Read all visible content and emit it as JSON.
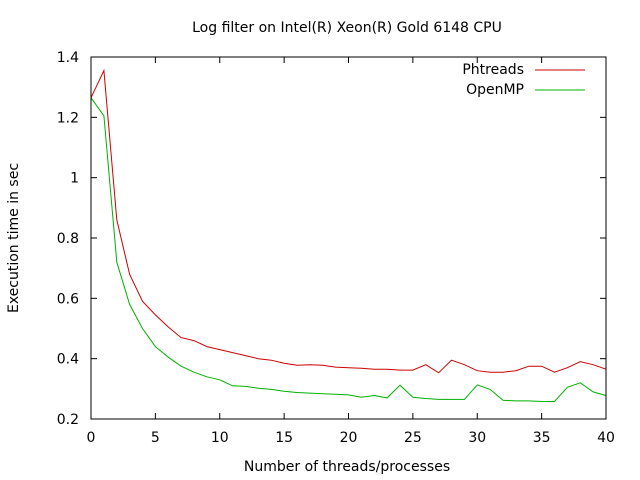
{
  "chart_data": {
    "type": "line",
    "title": "Log filter on Intel(R) Xeon(R) Gold 6148 CPU",
    "xlabel": "Number of threads/processes",
    "ylabel": "Execution time in sec",
    "xlim": [
      0,
      40
    ],
    "ylim": [
      0.2,
      1.4
    ],
    "xticks": [
      0,
      5,
      10,
      15,
      20,
      25,
      30,
      35,
      40
    ],
    "xtick_labels": [
      "0",
      "5",
      "10",
      "15",
      "20",
      "25",
      "30",
      "35",
      "40"
    ],
    "yticks": [
      0.2,
      0.4,
      0.6,
      0.8,
      1.0,
      1.2,
      1.4
    ],
    "ytick_labels": [
      "0.2",
      "0.4",
      "0.6",
      "0.8",
      "1",
      "1.2",
      "1.4"
    ],
    "grid": false,
    "legend_position": "top-right",
    "x": [
      0,
      1,
      2,
      3,
      4,
      5,
      6,
      7,
      8,
      9,
      10,
      11,
      12,
      13,
      14,
      15,
      16,
      17,
      18,
      19,
      20,
      21,
      22,
      23,
      24,
      25,
      26,
      27,
      28,
      29,
      30,
      31,
      32,
      33,
      34,
      35,
      36,
      37,
      38,
      39,
      40
    ],
    "series": [
      {
        "name": "Phtreads",
        "color": "#cc0000",
        "values": [
          1.265,
          1.355,
          0.86,
          0.68,
          0.59,
          0.545,
          0.505,
          0.47,
          0.46,
          0.44,
          0.43,
          0.42,
          0.41,
          0.4,
          0.395,
          0.385,
          0.378,
          0.38,
          0.378,
          0.372,
          0.37,
          0.368,
          0.365,
          0.365,
          0.362,
          0.362,
          0.38,
          0.353,
          0.395,
          0.38,
          0.36,
          0.355,
          0.355,
          0.36,
          0.375,
          0.375,
          0.355,
          0.37,
          0.39,
          0.38,
          0.365
        ]
      },
      {
        "name": "OpenMP",
        "color": "#00b000",
        "values": [
          1.265,
          1.205,
          0.72,
          0.58,
          0.5,
          0.44,
          0.405,
          0.375,
          0.355,
          0.34,
          0.33,
          0.31,
          0.308,
          0.302,
          0.298,
          0.292,
          0.288,
          0.286,
          0.284,
          0.282,
          0.28,
          0.272,
          0.278,
          0.27,
          0.312,
          0.272,
          0.268,
          0.265,
          0.265,
          0.265,
          0.313,
          0.298,
          0.262,
          0.26,
          0.26,
          0.258,
          0.258,
          0.305,
          0.32,
          0.29,
          0.278
        ]
      }
    ]
  }
}
